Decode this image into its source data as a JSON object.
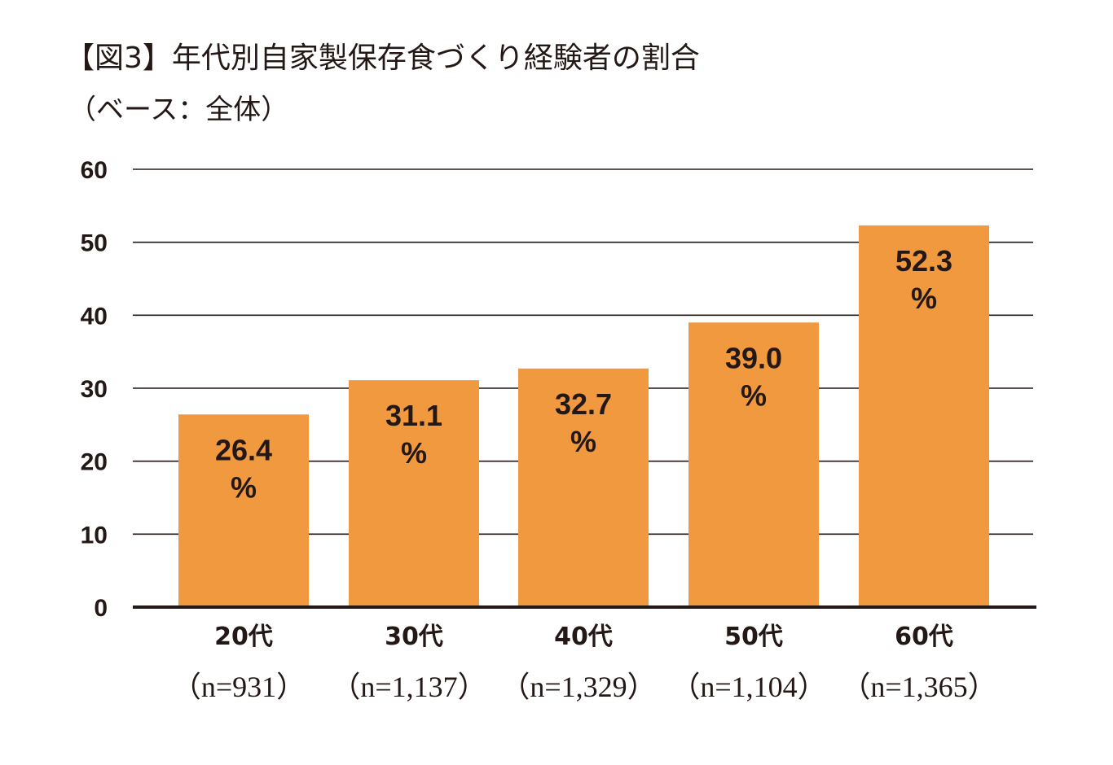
{
  "header": {
    "title": "【図3】年代別自家製保存食づくり経験者の割合",
    "subtitle": "（ベース：全体）"
  },
  "colors": {
    "bar": "#F0993E",
    "text": "#231815",
    "grid": "#231815",
    "background": "#FFFFFF"
  },
  "chart_data": {
    "type": "bar",
    "title": "【図3】年代別自家製保存食づくり経験者の割合",
    "subtitle": "（ベース：全体）",
    "xlabel": "",
    "ylabel": "",
    "ylim": [
      0,
      60
    ],
    "yticks": [
      0,
      10,
      20,
      30,
      40,
      50,
      60
    ],
    "grid": true,
    "legend": "none",
    "value_suffix": "%",
    "categories": [
      "20代",
      "30代",
      "40代",
      "50代",
      "60代"
    ],
    "category_notes": [
      "（n=931）",
      "（n=1,137）",
      "（n=1,329）",
      "（n=1,104）",
      "（n=1,365）"
    ],
    "values": [
      26.4,
      31.1,
      32.7,
      39.0,
      52.3
    ],
    "value_labels": [
      "26.4",
      "31.1",
      "32.7",
      "39.0",
      "52.3"
    ]
  }
}
